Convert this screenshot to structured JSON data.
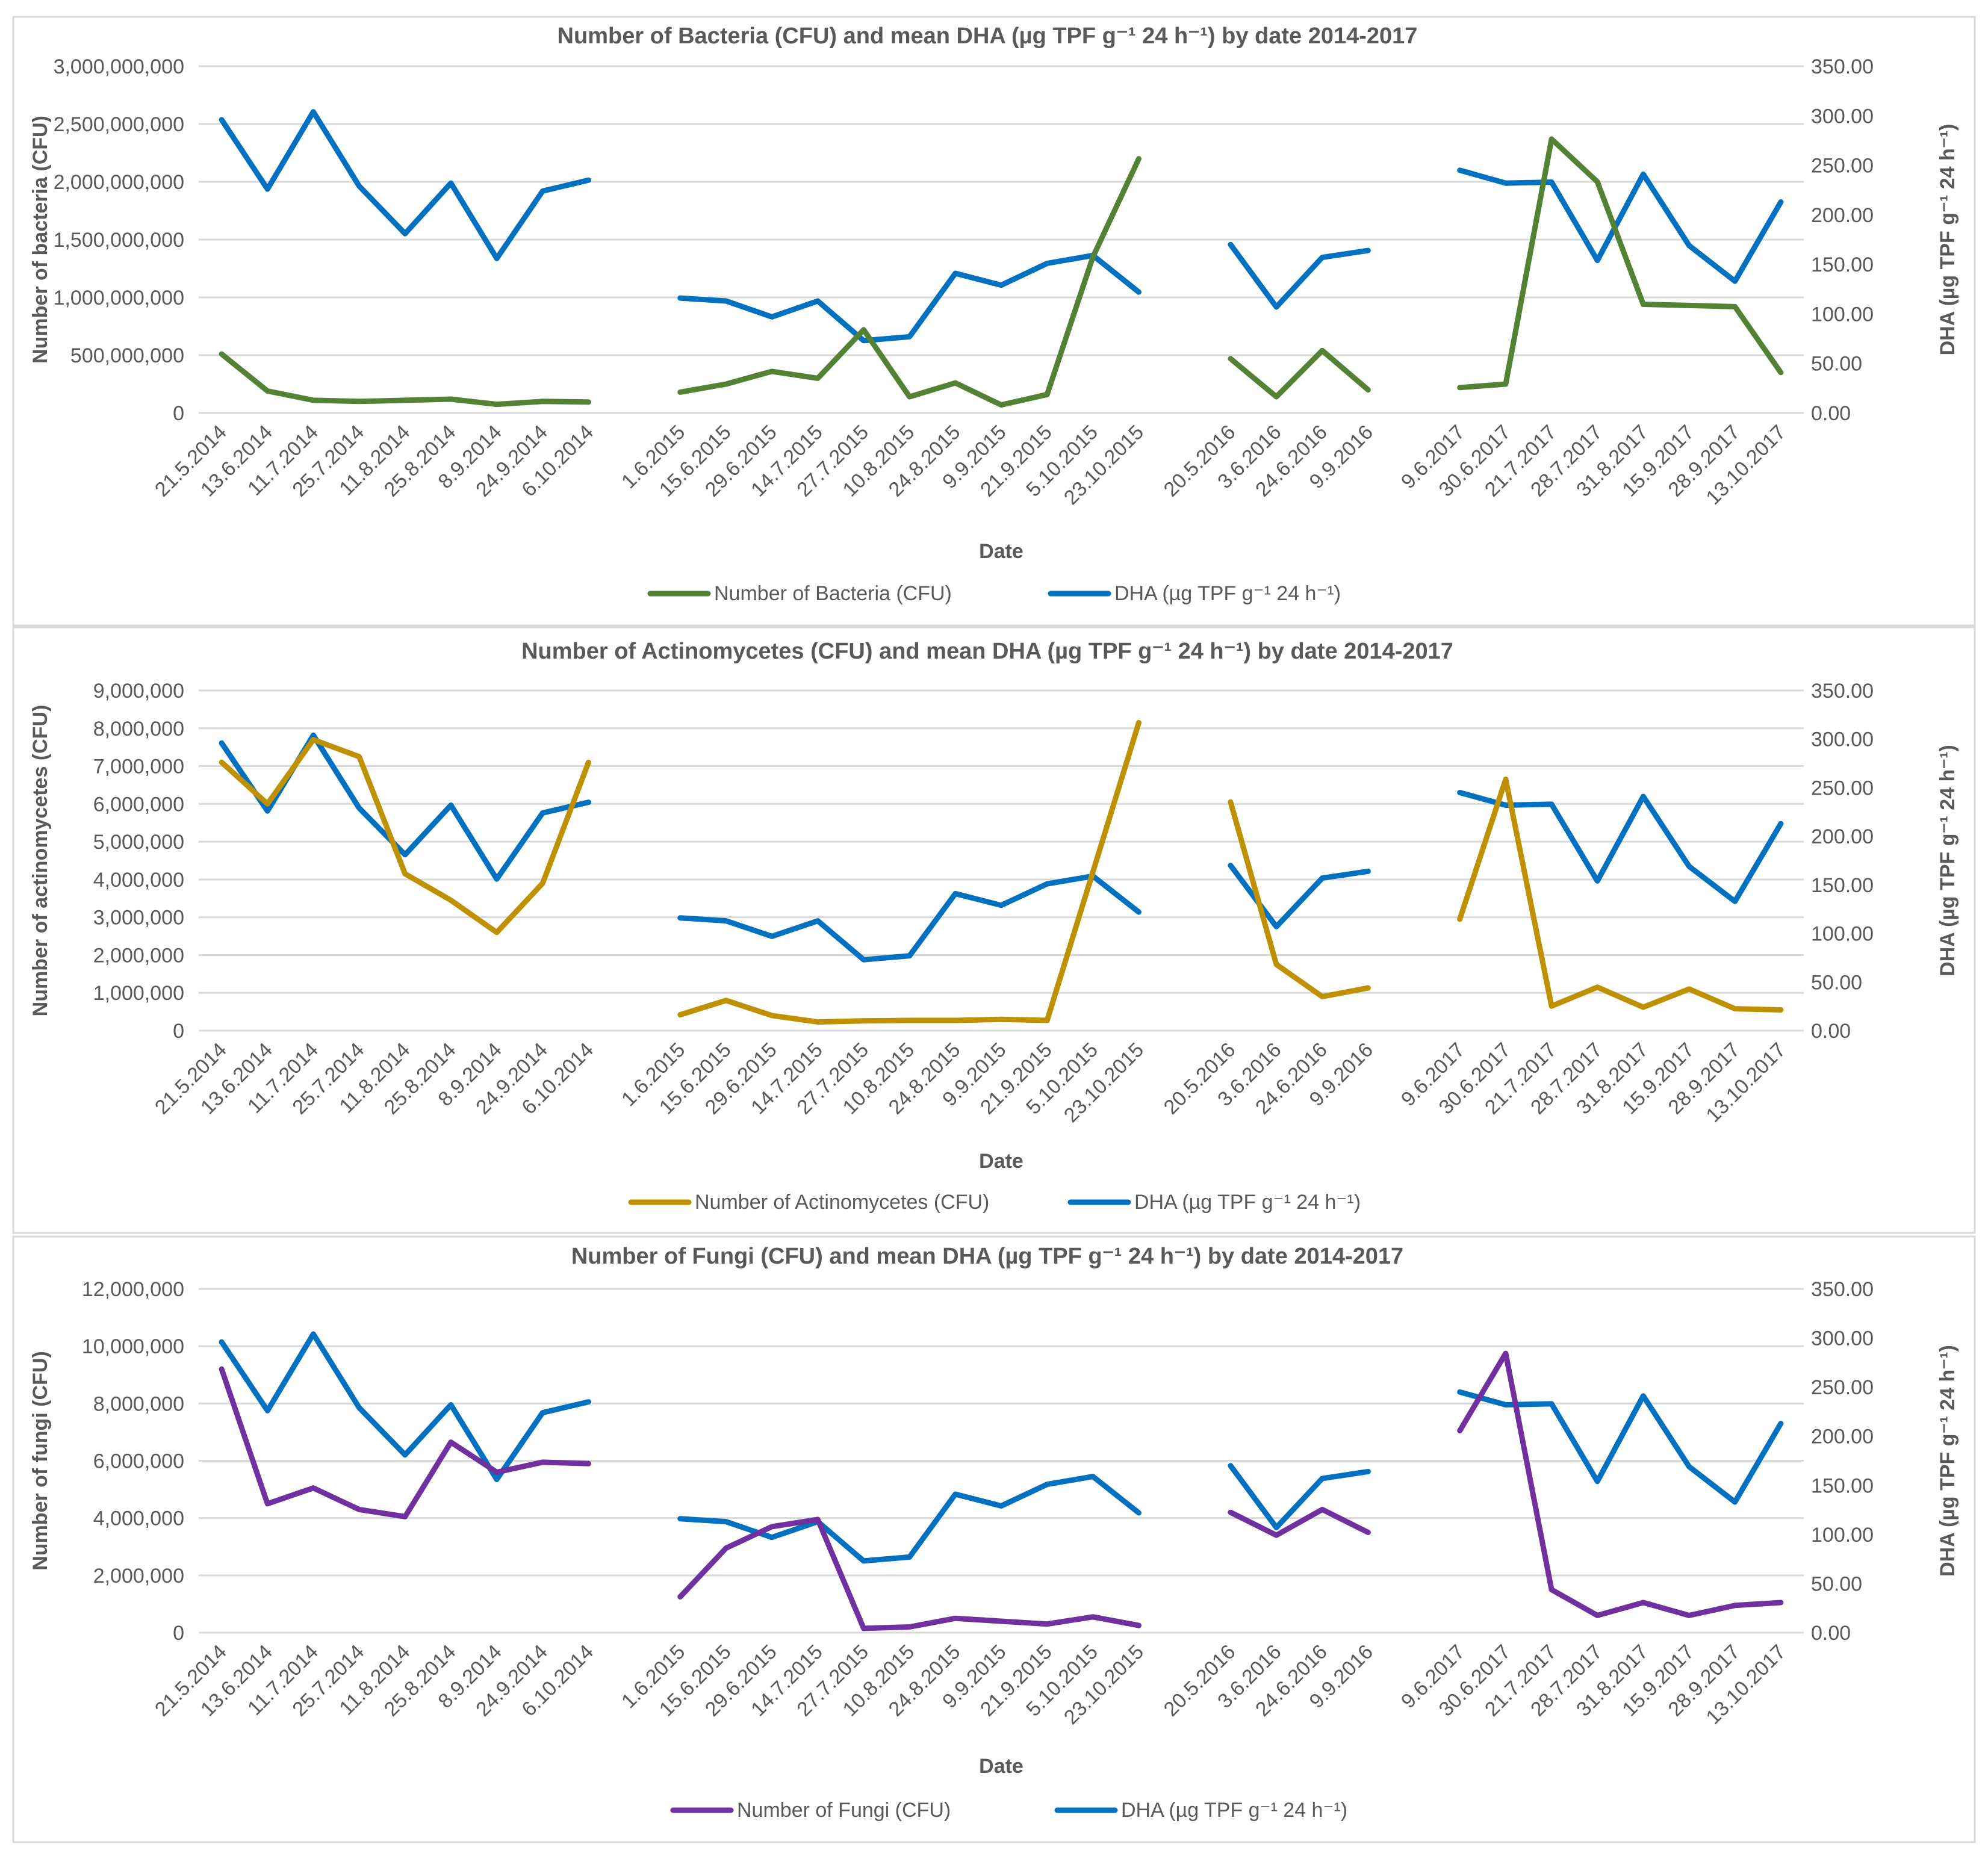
{
  "colors": {
    "bacteria": "#548235",
    "actinomycetes": "#BF9000",
    "fungi": "#7030A0",
    "dha": "#0070C0"
  },
  "chart_data": [
    {
      "type": "line",
      "title": "Number of Bacteria (CFU) and mean DHA (µg TPF g⁻¹ 24 h⁻¹) by date 2014-2017",
      "xlabel": "Date",
      "ylabel": "Number of bacteria (CFU)",
      "y2label": "DHA (µg TPF g⁻¹ 24 h⁻¹)",
      "ylim": [
        0,
        3000000000
      ],
      "y2lim": [
        0,
        350
      ],
      "yticks": [
        "0",
        "500,000,000",
        "1,000,000,000",
        "1,500,000,000",
        "2,000,000,000",
        "2,500,000,000",
        "3,000,000,000"
      ],
      "y2ticks": [
        "0.00",
        "50.00",
        "100.00",
        "150.00",
        "200.00",
        "250.00",
        "300.00",
        "350.00"
      ],
      "legend": "bottom",
      "grid": true,
      "categories": [
        "21.5.2014",
        "13.6.2014",
        "11.7.2014",
        "25.7.2014",
        "11.8.2014",
        "25.8.2014",
        "8.9.2014",
        "24.9.2014",
        "6.10.2014",
        "",
        "1.6.2015",
        "15.6.2015",
        "29.6.2015",
        "14.7.2015",
        "27.7.2015",
        "10.8.2015",
        "24.8.2015",
        "9.9.2015",
        "21.9.2015",
        "5.10.2015",
        "23.10.2015",
        "",
        "20.5.2016",
        "3.6.2016",
        "24.6.2016",
        "9.9.2016",
        "",
        "9.6.2017",
        "30.6.2017",
        "21.7.2017",
        "28.7.2017",
        "31.8.2017",
        "15.9.2017",
        "28.9.2017",
        "13.10.2017"
      ],
      "series": [
        {
          "name": "Number of Bacteria (CFU)",
          "axis": "left",
          "values": [
            510000000,
            190000000,
            110000000,
            100000000,
            110000000,
            120000000,
            75000000,
            100000000,
            95000000,
            null,
            180000000,
            250000000,
            360000000,
            300000000,
            720000000,
            140000000,
            260000000,
            70000000,
            160000000,
            1350000000,
            2200000000,
            null,
            470000000,
            140000000,
            540000000,
            200000000,
            null,
            220000000,
            250000000,
            2370000000,
            2000000000,
            940000000,
            930000000,
            920000000,
            350000000
          ]
        },
        {
          "name": "DHA (µg TPF g⁻¹ 24 h⁻¹)",
          "axis": "right",
          "values": [
            296,
            226,
            304,
            229,
            181,
            232,
            156,
            224,
            235,
            null,
            116,
            113,
            97,
            113,
            73,
            77,
            141,
            129,
            151,
            159,
            122,
            null,
            170,
            107,
            157,
            164,
            null,
            245,
            232,
            233,
            154,
            241,
            169,
            133,
            213
          ]
        }
      ]
    },
    {
      "type": "line",
      "title": "Number of Actinomycetes (CFU) and mean DHA (µg TPF g⁻¹ 24 h⁻¹) by date 2014-2017",
      "xlabel": "Date",
      "ylabel": "Number of actinomycetes (CFU)",
      "y2label": "DHA (µg TPF g⁻¹ 24 h⁻¹)",
      "ylim": [
        0,
        9000000
      ],
      "y2lim": [
        0,
        350
      ],
      "yticks": [
        "0",
        "1,000,000",
        "2,000,000",
        "3,000,000",
        "4,000,000",
        "5,000,000",
        "6,000,000",
        "7,000,000",
        "8,000,000",
        "9,000,000"
      ],
      "y2ticks": [
        "0.00",
        "50.00",
        "100.00",
        "150.00",
        "200.00",
        "250.00",
        "300.00",
        "350.00"
      ],
      "legend": "bottom",
      "grid": true,
      "categories": [
        "21.5.2014",
        "13.6.2014",
        "11.7.2014",
        "25.7.2014",
        "11.8.2014",
        "25.8.2014",
        "8.9.2014",
        "24.9.2014",
        "6.10.2014",
        "",
        "1.6.2015",
        "15.6.2015",
        "29.6.2015",
        "14.7.2015",
        "27.7.2015",
        "10.8.2015",
        "24.8.2015",
        "9.9.2015",
        "21.9.2015",
        "5.10.2015",
        "23.10.2015",
        "",
        "20.5.2016",
        "3.6.2016",
        "24.6.2016",
        "9.9.2016",
        "",
        "9.6.2017",
        "30.6.2017",
        "21.7.2017",
        "28.7.2017",
        "31.8.2017",
        "15.9.2017",
        "28.9.2017",
        "13.10.2017"
      ],
      "series": [
        {
          "name": "Number of Actinomycetes (CFU)",
          "axis": "left",
          "values": [
            7100000,
            6000000,
            7700000,
            7250000,
            4150000,
            3450000,
            2600000,
            3900000,
            7100000,
            null,
            420000,
            800000,
            400000,
            230000,
            260000,
            270000,
            270000,
            300000,
            270000,
            4200000,
            8150000,
            null,
            6050000,
            1750000,
            900000,
            1130000,
            null,
            2950000,
            6650000,
            650000,
            1150000,
            620000,
            1100000,
            580000,
            550000
          ]
        },
        {
          "name": "DHA (µg TPF g⁻¹ 24 h⁻¹)",
          "axis": "right",
          "values": [
            296,
            226,
            304,
            229,
            181,
            232,
            156,
            224,
            235,
            null,
            116,
            113,
            97,
            113,
            73,
            77,
            141,
            129,
            151,
            159,
            122,
            null,
            170,
            107,
            157,
            164,
            null,
            245,
            232,
            233,
            154,
            241,
            169,
            133,
            213
          ]
        }
      ]
    },
    {
      "type": "line",
      "title": "Number of Fungi (CFU) and mean DHA (µg TPF g⁻¹ 24 h⁻¹) by date 2014-2017",
      "xlabel": "Date",
      "ylabel": "Number of fungi (CFU)",
      "y2label": "DHA (µg TPF g⁻¹ 24 h⁻¹)",
      "ylim": [
        0,
        12000000
      ],
      "y2lim": [
        0,
        350
      ],
      "yticks": [
        "0",
        "2,000,000",
        "4,000,000",
        "6,000,000",
        "8,000,000",
        "10,000,000",
        "12,000,000"
      ],
      "y2ticks": [
        "0.00",
        "50.00",
        "100.00",
        "150.00",
        "200.00",
        "250.00",
        "300.00",
        "350.00"
      ],
      "legend": "bottom",
      "grid": true,
      "categories": [
        "21.5.2014",
        "13.6.2014",
        "11.7.2014",
        "25.7.2014",
        "11.8.2014",
        "25.8.2014",
        "8.9.2014",
        "24.9.2014",
        "6.10.2014",
        "",
        "1.6.2015",
        "15.6.2015",
        "29.6.2015",
        "14.7.2015",
        "27.7.2015",
        "10.8.2015",
        "24.8.2015",
        "9.9.2015",
        "21.9.2015",
        "5.10.2015",
        "23.10.2015",
        "",
        "20.5.2016",
        "3.6.2016",
        "24.6.2016",
        "9.9.2016",
        "",
        "9.6.2017",
        "30.6.2017",
        "21.7.2017",
        "28.7.2017",
        "31.8.2017",
        "15.9.2017",
        "28.9.2017",
        "13.10.2017"
      ],
      "series": [
        {
          "name": "Number of Fungi (CFU)",
          "axis": "left",
          "values": [
            9200000,
            4500000,
            5050000,
            4300000,
            4050000,
            6650000,
            5600000,
            5950000,
            5900000,
            null,
            1250000,
            2950000,
            3700000,
            3950000,
            150000,
            200000,
            500000,
            400000,
            300000,
            550000,
            250000,
            null,
            4200000,
            3400000,
            4300000,
            3500000,
            null,
            7050000,
            9750000,
            1500000,
            600000,
            1050000,
            600000,
            950000,
            1050000
          ]
        },
        {
          "name": "DHA (µg TPF g⁻¹ 24 h⁻¹)",
          "axis": "right",
          "values": [
            296,
            226,
            304,
            229,
            181,
            232,
            156,
            224,
            235,
            null,
            116,
            113,
            97,
            113,
            73,
            77,
            141,
            129,
            151,
            159,
            122,
            null,
            170,
            107,
            157,
            164,
            null,
            245,
            232,
            233,
            154,
            241,
            169,
            133,
            213
          ]
        }
      ]
    }
  ]
}
